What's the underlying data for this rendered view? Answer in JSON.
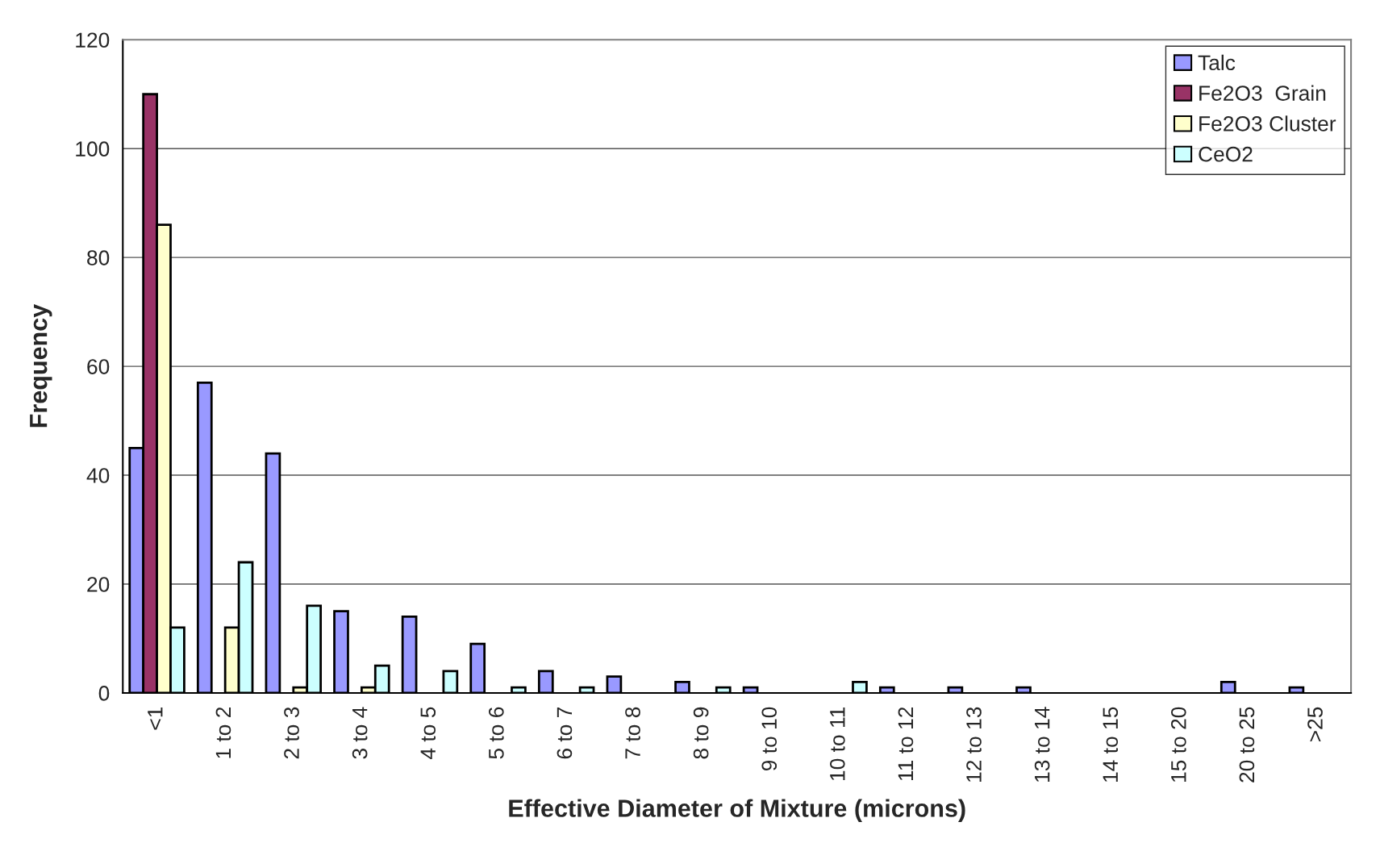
{
  "chart_data": {
    "type": "bar",
    "xlabel": "Effective Diameter of Mixture (microns)",
    "ylabel": "Frequency",
    "categories": [
      "<1",
      "1 to 2",
      "2 to 3",
      "3 to 4",
      "4 to 5",
      "5 to 6",
      "6 to 7",
      "7 to 8",
      "8 to 9",
      "9 to 10",
      "10 to 11",
      "11 to 12",
      "12 to 13",
      "13 to 14",
      "14 to 15",
      "15 to 20",
      "20 to 25",
      ">25"
    ],
    "series": [
      {
        "name": "Talc",
        "color": "#9999ff",
        "values": [
          45,
          57,
          44,
          15,
          14,
          9,
          4,
          3,
          2,
          1,
          null,
          1,
          1,
          1,
          null,
          null,
          2,
          1
        ]
      },
      {
        "name": "Fe2O3  Grain",
        "color": "#993366",
        "values": [
          110,
          null,
          null,
          null,
          null,
          null,
          null,
          null,
          null,
          null,
          null,
          null,
          null,
          null,
          null,
          null,
          null,
          null
        ]
      },
      {
        "name": "Fe2O3 Cluster",
        "color": "#ffffcc",
        "values": [
          86,
          12,
          1,
          1,
          null,
          null,
          null,
          null,
          null,
          null,
          null,
          null,
          null,
          null,
          null,
          null,
          null,
          null
        ]
      },
      {
        "name": "CeO2",
        "color": "#ccffff",
        "values": [
          12,
          24,
          16,
          5,
          4,
          1,
          1,
          null,
          1,
          null,
          2,
          null,
          null,
          null,
          null,
          null,
          null,
          null
        ]
      }
    ],
    "ylim": [
      0,
      120
    ],
    "yticks": [
      0,
      20,
      40,
      60,
      80,
      100,
      120
    ],
    "grid": "y",
    "legend": "top right"
  }
}
